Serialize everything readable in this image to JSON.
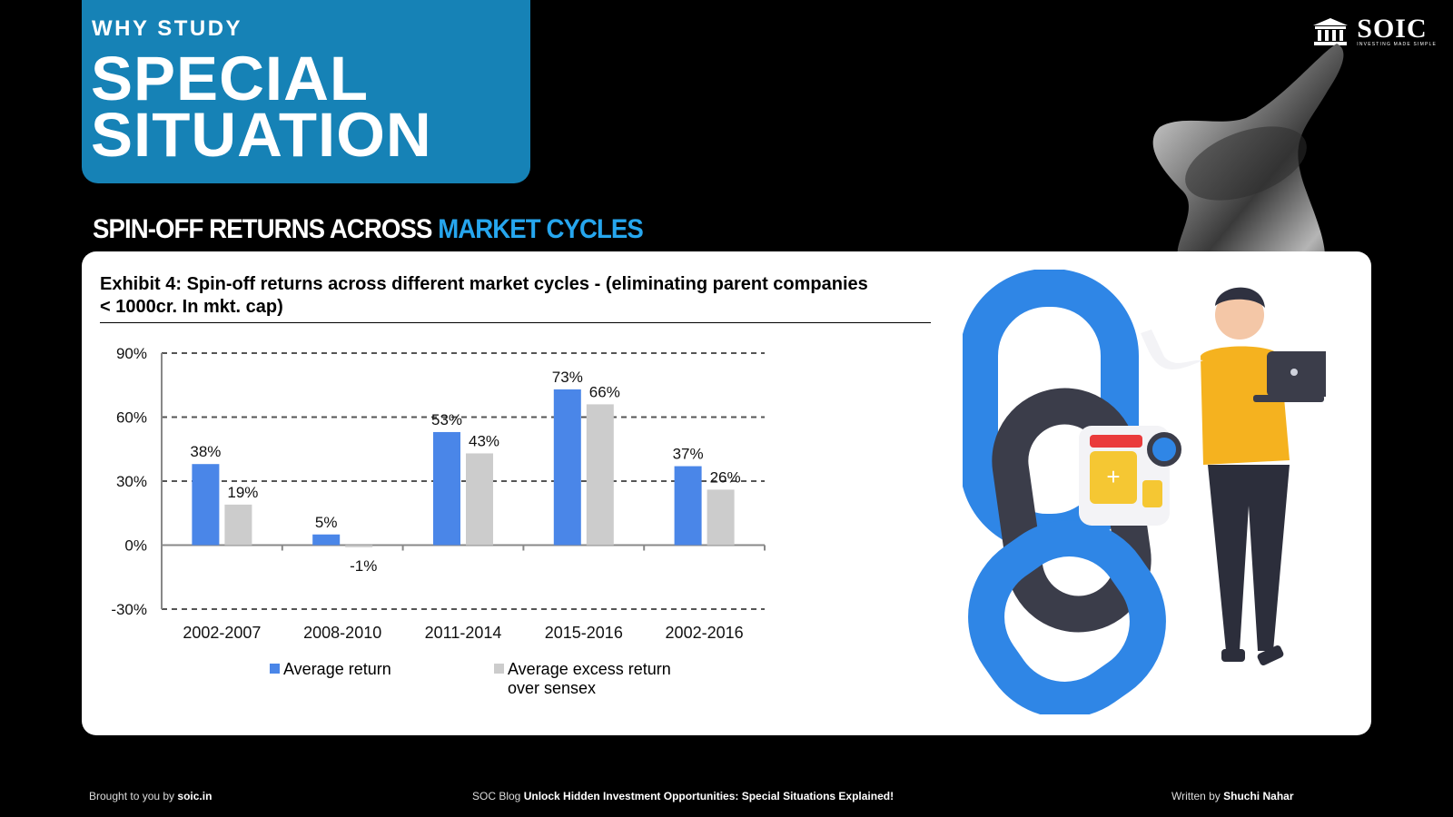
{
  "header": {
    "kicker": "WHY STUDY",
    "title_line1": "SPECIAL",
    "title_line2": "SITUATION"
  },
  "logo": {
    "name": "SOIC",
    "tagline": "INVESTING MADE SIMPLE",
    "icon": "institution-building-icon"
  },
  "section": {
    "heading_part1": "SPIN-OFF RETURNS ACROSS ",
    "heading_part2": "MARKET CYCLES"
  },
  "exhibit": {
    "title_line1": "Exhibit 4: Spin-off returns across different market cycles - (eliminating parent companies",
    "title_line2": "< 1000cr. In mkt. cap)"
  },
  "chart_data": {
    "type": "bar",
    "categories": [
      "2002-2007",
      "2008-2010",
      "2011-2014",
      "2015-2016",
      "2002-2016"
    ],
    "series": [
      {
        "name": "Average return",
        "values": [
          38,
          5,
          53,
          73,
          37
        ],
        "labels": [
          "38%",
          "5%",
          "53%",
          "73%",
          "37%"
        ],
        "color": "#4a86e8"
      },
      {
        "name": "Average excess return over sensex",
        "values": [
          19,
          -1,
          43,
          66,
          26
        ],
        "labels": [
          "19%",
          "-1%",
          "43%",
          "66%",
          "26%"
        ],
        "color": "#cccccc"
      }
    ],
    "ylim": [
      -30,
      90
    ],
    "yticks": [
      -30,
      0,
      30,
      60,
      90
    ],
    "ytick_labels": [
      "-30%",
      "0%",
      "30%",
      "60%",
      "90%"
    ],
    "grid": "dashed horizontal",
    "legend": [
      "Average return",
      "Average excess return over sensex"
    ],
    "legend_placement": "bottom"
  },
  "legend": {
    "item1": "Average return",
    "item2_line1": "Average excess return",
    "item2_line2": "over sensex"
  },
  "footer": {
    "left_prefix": "Brought to you by ",
    "left_link": "soic.in",
    "center_prefix": "SOC Blog ",
    "center_title": "Unlock Hidden Investment Opportunities: Special Situations Explained!",
    "right_prefix": "Written by ",
    "right_author": "Shuchi Nahar"
  },
  "colors": {
    "accent_blue": "#1682b6",
    "heading_accent": "#26a6ee",
    "bar_blue": "#4a86e8",
    "bar_gray": "#cccccc"
  }
}
